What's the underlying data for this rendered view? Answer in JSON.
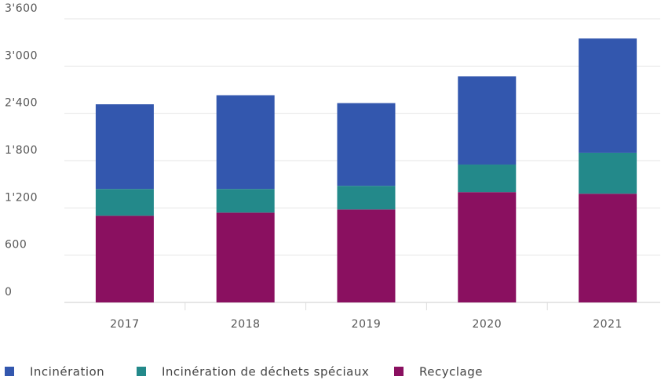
{
  "chart_data": {
    "type": "stacked_bar",
    "categories": [
      "2017",
      "2018",
      "2019",
      "2020",
      "2021"
    ],
    "series": [
      {
        "name": "Incinération",
        "color": "#3357ae",
        "values": [
          1075,
          1190,
          1050,
          1120,
          1450
        ]
      },
      {
        "name": "Incinération de déchets spéciaux",
        "color": "#23898a",
        "values": [
          340,
          300,
          300,
          350,
          520
        ]
      },
      {
        "name": "Recyclage",
        "color": "#8a1060",
        "values": [
          1100,
          1140,
          1180,
          1400,
          1380
        ]
      }
    ],
    "ylim": [
      0,
      3600
    ],
    "yticks": [
      0,
      600,
      {
        "value": 1200,
        "label": "1'200"
      },
      {
        "value": 1800,
        "label": "1'800"
      },
      {
        "value": 2400,
        "label": "2'400"
      },
      {
        "value": 3000,
        "label": "3'000"
      },
      {
        "value": 3600,
        "label": "3'600"
      }
    ],
    "grid": true,
    "legend": "bottom"
  }
}
